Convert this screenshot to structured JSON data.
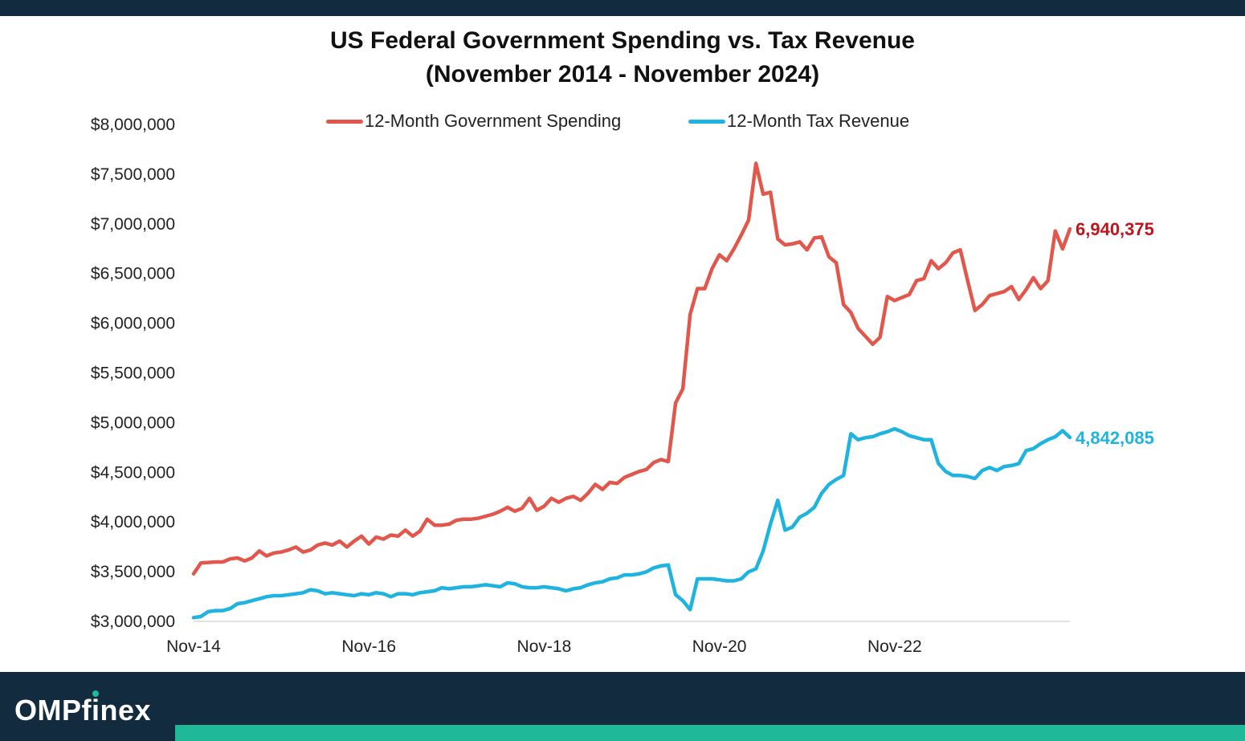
{
  "header": {
    "title_line1": "US Federal Government Spending vs. Tax Revenue",
    "title_line2": "(November 2014 - November 2024)"
  },
  "brand": {
    "logo_text_a": "OMPf",
    "logo_text_i": "i",
    "logo_text_b": "nex",
    "colors": {
      "navy": "#132b3f",
      "green": "#1fb99a"
    }
  },
  "chart_data": {
    "type": "line",
    "title": "US Federal Government Spending vs. Tax Revenue (November 2014 - November 2024)",
    "xlabel": "",
    "ylabel": "",
    "ylim": [
      3000000,
      8000000
    ],
    "yticks": [
      3000000,
      3500000,
      4000000,
      4500000,
      5000000,
      5500000,
      6000000,
      6500000,
      7000000,
      7500000,
      8000000
    ],
    "ytick_labels": [
      "$3,000,000",
      "$3,500,000",
      "$4,000,000",
      "$4,500,000",
      "$5,000,000",
      "$5,500,000",
      "$6,000,000",
      "$6,500,000",
      "$7,000,000",
      "$7,500,000",
      "$8,000,000"
    ],
    "xlim": [
      "2014-11",
      "2024-11"
    ],
    "xticks": [
      "2014-11",
      "2016-11",
      "2018-11",
      "2020-11",
      "2022-11"
    ],
    "xtick_labels": [
      "Nov-14",
      "Nov-16",
      "Nov-18",
      "Nov-20",
      "Nov-22"
    ],
    "grid": false,
    "legend_position": "top",
    "series": [
      {
        "name": "12-Month Government Spending",
        "color": "#e2574c",
        "end_label": "6,940,375",
        "end_label_color": "#c0141c",
        "points": [
          [
            "2014-11",
            3470000
          ],
          [
            "2014-12",
            3580000
          ],
          [
            "2015-02",
            3590000
          ],
          [
            "2015-03",
            3590000
          ],
          [
            "2015-04",
            3620000
          ],
          [
            "2015-05",
            3630000
          ],
          [
            "2015-06",
            3600000
          ],
          [
            "2015-07",
            3630000
          ],
          [
            "2015-08",
            3700000
          ],
          [
            "2015-09",
            3650000
          ],
          [
            "2015-10",
            3680000
          ],
          [
            "2015-11",
            3690000
          ],
          [
            "2015-12",
            3710000
          ],
          [
            "2016-01",
            3740000
          ],
          [
            "2016-02",
            3690000
          ],
          [
            "2016-03",
            3710000
          ],
          [
            "2016-04",
            3760000
          ],
          [
            "2016-05",
            3780000
          ],
          [
            "2016-06",
            3760000
          ],
          [
            "2016-07",
            3800000
          ],
          [
            "2016-08",
            3740000
          ],
          [
            "2016-09",
            3800000
          ],
          [
            "2016-10",
            3850000
          ],
          [
            "2016-11",
            3770000
          ],
          [
            "2016-12",
            3840000
          ],
          [
            "2017-01",
            3820000
          ],
          [
            "2017-02",
            3860000
          ],
          [
            "2017-03",
            3850000
          ],
          [
            "2017-04",
            3910000
          ],
          [
            "2017-05",
            3850000
          ],
          [
            "2017-06",
            3900000
          ],
          [
            "2017-07",
            4020000
          ],
          [
            "2017-08",
            3960000
          ],
          [
            "2017-09",
            3960000
          ],
          [
            "2017-10",
            3970000
          ],
          [
            "2017-11",
            4010000
          ],
          [
            "2017-12",
            4020000
          ],
          [
            "2018-01",
            4020000
          ],
          [
            "2018-02",
            4030000
          ],
          [
            "2018-03",
            4050000
          ],
          [
            "2018-04",
            4070000
          ],
          [
            "2018-05",
            4100000
          ],
          [
            "2018-06",
            4140000
          ],
          [
            "2018-07",
            4100000
          ],
          [
            "2018-08",
            4130000
          ],
          [
            "2018-09",
            4230000
          ],
          [
            "2018-10",
            4110000
          ],
          [
            "2018-11",
            4150000
          ],
          [
            "2018-12",
            4230000
          ],
          [
            "2019-01",
            4190000
          ],
          [
            "2019-02",
            4230000
          ],
          [
            "2019-03",
            4250000
          ],
          [
            "2019-04",
            4210000
          ],
          [
            "2019-05",
            4280000
          ],
          [
            "2019-06",
            4370000
          ],
          [
            "2019-07",
            4320000
          ],
          [
            "2019-08",
            4390000
          ],
          [
            "2019-09",
            4380000
          ],
          [
            "2019-10",
            4440000
          ],
          [
            "2019-11",
            4470000
          ],
          [
            "2019-12",
            4500000
          ],
          [
            "2020-01",
            4520000
          ],
          [
            "2020-02",
            4590000
          ],
          [
            "2020-03",
            4620000
          ],
          [
            "2020-04",
            4600000
          ],
          [
            "2020-05",
            5190000
          ],
          [
            "2020-06",
            5330000
          ],
          [
            "2020-07",
            6080000
          ],
          [
            "2020-08",
            6340000
          ],
          [
            "2020-09",
            6340000
          ],
          [
            "2020-10",
            6540000
          ],
          [
            "2020-11",
            6680000
          ],
          [
            "2020-12",
            6620000
          ],
          [
            "2021-01",
            6740000
          ],
          [
            "2021-02",
            6880000
          ],
          [
            "2021-03",
            7030000
          ],
          [
            "2021-04",
            7600000
          ],
          [
            "2021-05",
            7290000
          ],
          [
            "2021-06",
            7310000
          ],
          [
            "2021-07",
            6840000
          ],
          [
            "2021-08",
            6780000
          ],
          [
            "2021-09",
            6790000
          ],
          [
            "2021-10",
            6810000
          ],
          [
            "2021-11",
            6730000
          ],
          [
            "2021-12",
            6850000
          ],
          [
            "2022-01",
            6860000
          ],
          [
            "2022-02",
            6660000
          ],
          [
            "2022-03",
            6600000
          ],
          [
            "2022-04",
            6180000
          ],
          [
            "2022-05",
            6100000
          ],
          [
            "2022-06",
            5940000
          ],
          [
            "2022-07",
            5860000
          ],
          [
            "2022-08",
            5780000
          ],
          [
            "2022-09",
            5850000
          ],
          [
            "2022-10",
            6260000
          ],
          [
            "2022-11",
            6220000
          ],
          [
            "2022-12",
            6250000
          ],
          [
            "2023-01",
            6280000
          ],
          [
            "2023-02",
            6420000
          ],
          [
            "2023-03",
            6440000
          ],
          [
            "2023-04",
            6620000
          ],
          [
            "2023-05",
            6540000
          ],
          [
            "2023-06",
            6600000
          ],
          [
            "2023-07",
            6700000
          ],
          [
            "2023-08",
            6730000
          ],
          [
            "2023-09",
            6420000
          ],
          [
            "2023-10",
            6120000
          ],
          [
            "2023-11",
            6180000
          ],
          [
            "2023-12",
            6270000
          ],
          [
            "2024-01",
            6290000
          ],
          [
            "2024-02",
            6310000
          ],
          [
            "2024-03",
            6360000
          ],
          [
            "2024-04",
            6230000
          ],
          [
            "2024-05",
            6330000
          ],
          [
            "2024-06",
            6450000
          ],
          [
            "2024-07",
            6340000
          ],
          [
            "2024-08",
            6420000
          ],
          [
            "2024-09",
            6920000
          ],
          [
            "2024-10",
            6740000
          ],
          [
            "2024-11",
            6940375
          ]
        ]
      },
      {
        "name": "12-Month Tax Revenue",
        "color": "#1fb3e0",
        "end_label": "4,842,085",
        "end_label_color": "#1fb3e0",
        "points": [
          [
            "2014-11",
            3030000
          ],
          [
            "2014-12",
            3040000
          ],
          [
            "2015-01",
            3090000
          ],
          [
            "2015-02",
            3100000
          ],
          [
            "2015-03",
            3100000
          ],
          [
            "2015-04",
            3120000
          ],
          [
            "2015-05",
            3170000
          ],
          [
            "2015-06",
            3180000
          ],
          [
            "2015-07",
            3200000
          ],
          [
            "2015-08",
            3220000
          ],
          [
            "2015-09",
            3240000
          ],
          [
            "2015-10",
            3250000
          ],
          [
            "2015-11",
            3250000
          ],
          [
            "2015-12",
            3260000
          ],
          [
            "2016-01",
            3270000
          ],
          [
            "2016-02",
            3280000
          ],
          [
            "2016-03",
            3310000
          ],
          [
            "2016-04",
            3300000
          ],
          [
            "2016-05",
            3270000
          ],
          [
            "2016-06",
            3280000
          ],
          [
            "2016-07",
            3270000
          ],
          [
            "2016-08",
            3260000
          ],
          [
            "2016-09",
            3250000
          ],
          [
            "2016-10",
            3270000
          ],
          [
            "2016-11",
            3260000
          ],
          [
            "2016-12",
            3280000
          ],
          [
            "2017-01",
            3270000
          ],
          [
            "2017-02",
            3240000
          ],
          [
            "2017-03",
            3270000
          ],
          [
            "2017-04",
            3270000
          ],
          [
            "2017-05",
            3260000
          ],
          [
            "2017-06",
            3280000
          ],
          [
            "2017-07",
            3290000
          ],
          [
            "2017-08",
            3300000
          ],
          [
            "2017-09",
            3330000
          ],
          [
            "2017-10",
            3320000
          ],
          [
            "2017-11",
            3330000
          ],
          [
            "2017-12",
            3340000
          ],
          [
            "2018-01",
            3340000
          ],
          [
            "2018-02",
            3350000
          ],
          [
            "2018-03",
            3360000
          ],
          [
            "2018-04",
            3350000
          ],
          [
            "2018-05",
            3340000
          ],
          [
            "2018-06",
            3380000
          ],
          [
            "2018-07",
            3370000
          ],
          [
            "2018-08",
            3340000
          ],
          [
            "2018-09",
            3330000
          ],
          [
            "2018-10",
            3330000
          ],
          [
            "2018-11",
            3340000
          ],
          [
            "2018-12",
            3330000
          ],
          [
            "2019-01",
            3320000
          ],
          [
            "2019-02",
            3300000
          ],
          [
            "2019-03",
            3320000
          ],
          [
            "2019-04",
            3330000
          ],
          [
            "2019-05",
            3360000
          ],
          [
            "2019-06",
            3380000
          ],
          [
            "2019-07",
            3390000
          ],
          [
            "2019-08",
            3420000
          ],
          [
            "2019-09",
            3430000
          ],
          [
            "2019-10",
            3460000
          ],
          [
            "2019-11",
            3460000
          ],
          [
            "2019-12",
            3470000
          ],
          [
            "2020-01",
            3490000
          ],
          [
            "2020-02",
            3530000
          ],
          [
            "2020-03",
            3550000
          ],
          [
            "2020-04",
            3560000
          ],
          [
            "2020-05",
            3260000
          ],
          [
            "2020-06",
            3200000
          ],
          [
            "2020-07",
            3110000
          ],
          [
            "2020-08",
            3420000
          ],
          [
            "2020-09",
            3420000
          ],
          [
            "2020-10",
            3420000
          ],
          [
            "2020-11",
            3410000
          ],
          [
            "2020-12",
            3400000
          ],
          [
            "2021-01",
            3400000
          ],
          [
            "2021-02",
            3420000
          ],
          [
            "2021-03",
            3490000
          ],
          [
            "2021-04",
            3520000
          ],
          [
            "2021-05",
            3700000
          ],
          [
            "2021-06",
            3970000
          ],
          [
            "2021-07",
            4210000
          ],
          [
            "2021-08",
            3910000
          ],
          [
            "2021-09",
            3940000
          ],
          [
            "2021-10",
            4040000
          ],
          [
            "2021-11",
            4080000
          ],
          [
            "2021-12",
            4140000
          ],
          [
            "2022-01",
            4280000
          ],
          [
            "2022-02",
            4370000
          ],
          [
            "2022-03",
            4420000
          ],
          [
            "2022-04",
            4460000
          ],
          [
            "2022-05",
            4880000
          ],
          [
            "2022-06",
            4820000
          ],
          [
            "2022-07",
            4840000
          ],
          [
            "2022-08",
            4850000
          ],
          [
            "2022-09",
            4880000
          ],
          [
            "2022-10",
            4900000
          ],
          [
            "2022-11",
            4930000
          ],
          [
            "2022-12",
            4900000
          ],
          [
            "2023-01",
            4860000
          ],
          [
            "2023-02",
            4840000
          ],
          [
            "2023-03",
            4820000
          ],
          [
            "2023-04",
            4820000
          ],
          [
            "2023-05",
            4580000
          ],
          [
            "2023-06",
            4500000
          ],
          [
            "2023-07",
            4460000
          ],
          [
            "2023-08",
            4460000
          ],
          [
            "2023-09",
            4450000
          ],
          [
            "2023-10",
            4430000
          ],
          [
            "2023-11",
            4510000
          ],
          [
            "2023-12",
            4540000
          ],
          [
            "2024-01",
            4510000
          ],
          [
            "2024-02",
            4550000
          ],
          [
            "2024-03",
            4560000
          ],
          [
            "2024-04",
            4580000
          ],
          [
            "2024-05",
            4710000
          ],
          [
            "2024-06",
            4730000
          ],
          [
            "2024-07",
            4780000
          ],
          [
            "2024-08",
            4820000
          ],
          [
            "2024-09",
            4850000
          ],
          [
            "2024-10",
            4910000
          ],
          [
            "2024-11",
            4842085
          ]
        ]
      }
    ]
  }
}
